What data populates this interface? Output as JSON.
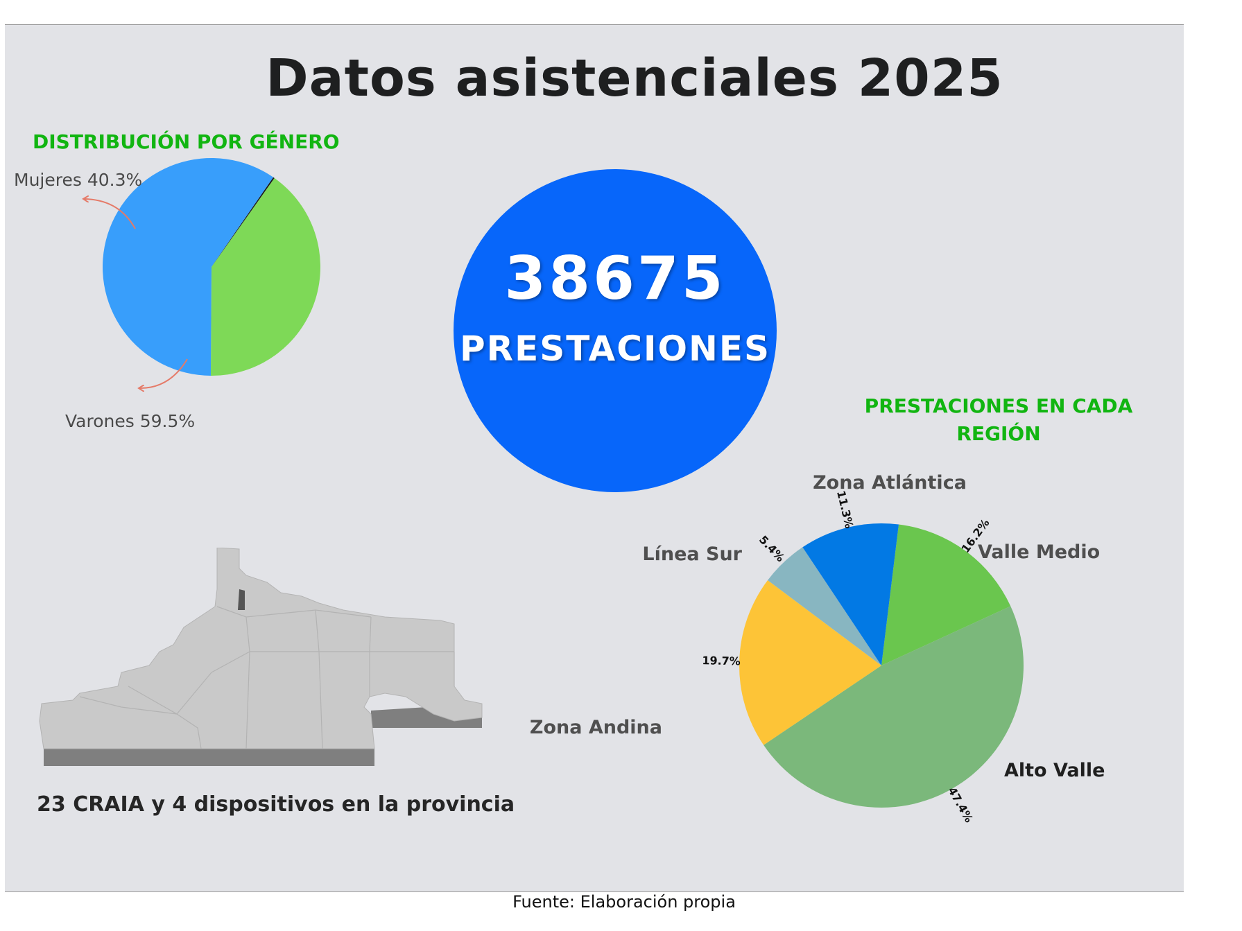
{
  "title": "Datos asistenciales 2025",
  "total": {
    "value": "38675",
    "label": "PRESTACIONES"
  },
  "map_caption": "23 CRAIA y 4 dispositivos en la provincia",
  "source": "Fuente: Elaboración propia",
  "chart_data": [
    {
      "type": "pie",
      "title": "DISTRIBUCIÓN POR GÉNERO",
      "slices": [
        {
          "label": "Mujeres 40.3%",
          "value": 40.3,
          "color": "#7ed957"
        },
        {
          "label": "Varones 59.5%",
          "value": 59.5,
          "color": "#389efb"
        },
        {
          "label": "",
          "value": 0.2,
          "color": "#1a1a1a"
        }
      ]
    },
    {
      "type": "pie",
      "title": "PRESTACIONES EN CADA REGIÓN",
      "slices": [
        {
          "label": "Valle Medio",
          "value": 16.2,
          "pct_label": "16.2%",
          "color": "#6ac64e"
        },
        {
          "label": "Alto Valle",
          "value": 47.4,
          "pct_label": "47.4%",
          "color": "#7bb87b"
        },
        {
          "label": "Zona Andina",
          "value": 19.7,
          "pct_label": "19.7%",
          "color": "#fdc437"
        },
        {
          "label": "Línea Sur",
          "value": 5.4,
          "pct_label": "5.4%",
          "color": "#88b6c1"
        },
        {
          "label": "Zona Atlántica",
          "value": 11.3,
          "pct_label": "11.3%",
          "color": "#0279e4"
        }
      ]
    }
  ]
}
